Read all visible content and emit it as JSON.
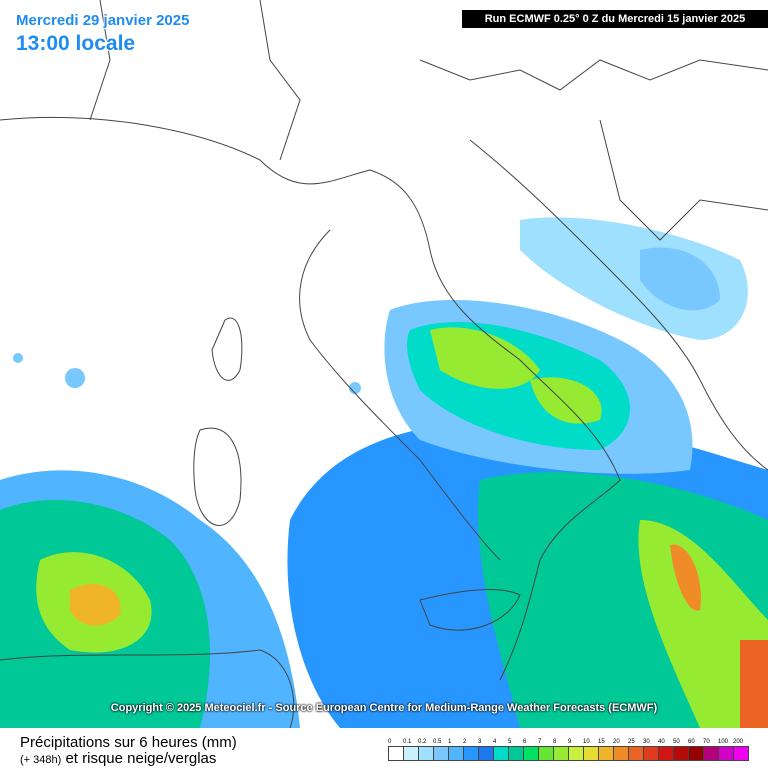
{
  "header": {
    "date": "Mercredi 29 janvier 2025",
    "time": "13:00 locale",
    "run": "Run ECMWF 0.25° 0 Z du Mercredi 15 janvier 2025"
  },
  "copyright": "Copyright © 2025 Meteociel.fr - Source European Centre for Medium-Range Weather Forecasts (ECMWF)",
  "footer": {
    "title": "Précipitations sur 6 heures (mm)",
    "lead": "(+ 348h)",
    "subtitle": "et risque neige/verglas"
  },
  "legend": {
    "labels": [
      0,
      0.1,
      0.2,
      0.5,
      1,
      2,
      3,
      4,
      5,
      6,
      7,
      8,
      9,
      10,
      15,
      20,
      25,
      30,
      40,
      50,
      60,
      70,
      100,
      200
    ],
    "colors": [
      "#ffffff",
      "#c8f0ff",
      "#a0e0ff",
      "#78c8ff",
      "#50b4ff",
      "#2896ff",
      "#1e78f0",
      "#00dcc8",
      "#00c896",
      "#00e164",
      "#64e632",
      "#96eb32",
      "#c8f03c",
      "#e6dc32",
      "#f0b428",
      "#f08c28",
      "#eb6423",
      "#e13c1e",
      "#d21414",
      "#b40a0a",
      "#960000",
      "#b4007a",
      "#d200c8",
      "#f000f0"
    ]
  }
}
